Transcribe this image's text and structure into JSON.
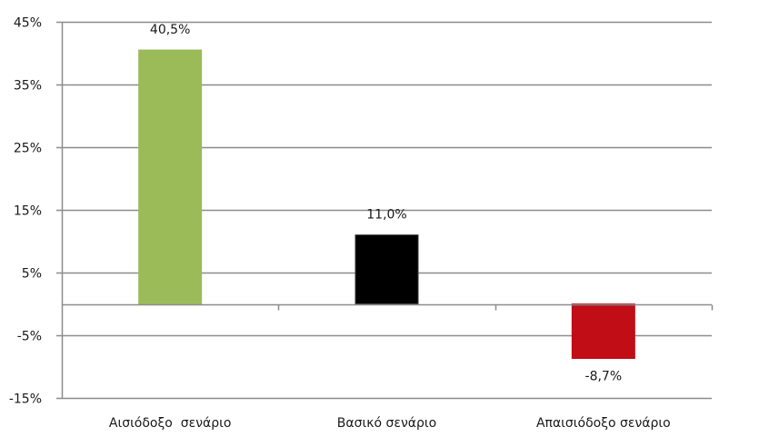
{
  "chart_data": {
    "type": "bar",
    "title": "",
    "xlabel": "",
    "ylabel": "",
    "categories": [
      "Αισιόδοξο  σενάριο",
      "Βασικό σενάριο",
      "Απαισιόδοξο σενάριο"
    ],
    "values": [
      40.5,
      11.0,
      -8.7
    ],
    "data_labels": [
      "40,5%",
      "11,0%",
      "-8,7%"
    ],
    "colors": [
      "#9bbb59",
      "#000000",
      "#c00d16"
    ],
    "ylim": [
      -15,
      45
    ],
    "yticks": [
      45,
      35,
      25,
      15,
      5,
      -5,
      -15
    ],
    "ytick_labels": [
      "45%",
      "35%",
      "25%",
      "15%",
      "5%",
      "-5%",
      "-15%"
    ],
    "grid": true,
    "legend": null
  }
}
